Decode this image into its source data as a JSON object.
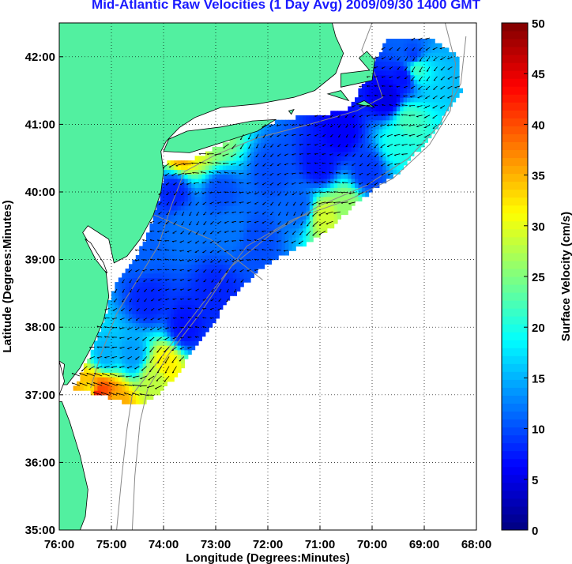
{
  "title": "Mid-Atlantic Raw Velocities (1 Day Avg) 2009/09/30 1400 GMT",
  "axes": {
    "xlabel": "Longitude (Degrees:Minutes)",
    "ylabel": "Latitude (Degrees:Minutes)",
    "xlim": [
      -76,
      -68
    ],
    "ylim": [
      35,
      42.5
    ],
    "xticks": [
      {
        "v": -76,
        "label": "76:00"
      },
      {
        "v": -75,
        "label": "75:00"
      },
      {
        "v": -74,
        "label": "74:00"
      },
      {
        "v": -73,
        "label": "73:00"
      },
      {
        "v": -72,
        "label": "72:00"
      },
      {
        "v": -71,
        "label": "71:00"
      },
      {
        "v": -70,
        "label": "70:00"
      },
      {
        "v": -69,
        "label": "69:00"
      },
      {
        "v": -68,
        "label": "68:00"
      }
    ],
    "yticks": [
      {
        "v": 35,
        "label": "35:00"
      },
      {
        "v": 36,
        "label": "36:00"
      },
      {
        "v": 37,
        "label": "37:00"
      },
      {
        "v": 38,
        "label": "38:00"
      },
      {
        "v": 39,
        "label": "39:00"
      },
      {
        "v": 40,
        "label": "40:00"
      },
      {
        "v": 41,
        "label": "41:00"
      },
      {
        "v": 42,
        "label": "42:00"
      }
    ],
    "grid": "dotted"
  },
  "colorbar": {
    "label": "Surface Velocity (cm/s)",
    "min": 0,
    "max": 50,
    "ticks": [
      {
        "v": 0,
        "label": "0"
      },
      {
        "v": 5,
        "label": "5"
      },
      {
        "v": 10,
        "label": "10"
      },
      {
        "v": 15,
        "label": "15"
      },
      {
        "v": 20,
        "label": "20"
      },
      {
        "v": 25,
        "label": "25"
      },
      {
        "v": 30,
        "label": "30"
      },
      {
        "v": 35,
        "label": "35"
      },
      {
        "v": 40,
        "label": "40"
      },
      {
        "v": 45,
        "label": "45"
      },
      {
        "v": 50,
        "label": "50"
      }
    ],
    "colormap": "jet"
  },
  "colors": {
    "land": "#52f0a0",
    "title": "#1a1aff",
    "bathymetry": "#888888",
    "arrow": "#000000"
  },
  "chart_data": {
    "type": "heatmap",
    "title": "Mid-Atlantic Raw Velocities (1 Day Avg) 2009/09/30 1400 GMT",
    "xlabel": "Longitude (Degrees:Minutes)",
    "ylabel": "Latitude (Degrees:Minutes)",
    "xlim": [
      -76,
      -68
    ],
    "ylim": [
      35,
      42.5
    ],
    "value_label": "Surface Velocity (cm/s)",
    "value_range": [
      0,
      50
    ],
    "coverage_polygon": [
      [
        -74.8,
        36.9
      ],
      [
        -74.5,
        36.85
      ],
      [
        -74.1,
        37.0
      ],
      [
        -73.75,
        37.3
      ],
      [
        -73.3,
        37.8
      ],
      [
        -72.75,
        38.4
      ],
      [
        -72.1,
        38.9
      ],
      [
        -71.5,
        39.15
      ],
      [
        -70.9,
        39.4
      ],
      [
        -70.3,
        39.85
      ],
      [
        -69.5,
        40.3
      ],
      [
        -68.9,
        40.8
      ],
      [
        -68.3,
        41.5
      ],
      [
        -68.35,
        42.0
      ],
      [
        -68.9,
        42.3
      ],
      [
        -69.7,
        42.25
      ],
      [
        -70.0,
        41.9
      ],
      [
        -70.2,
        41.55
      ],
      [
        -70.5,
        41.2
      ],
      [
        -71.5,
        41.1
      ],
      [
        -72.3,
        40.95
      ],
      [
        -73.0,
        40.65
      ],
      [
        -73.4,
        40.5
      ],
      [
        -73.95,
        40.45
      ],
      [
        -74.1,
        39.9
      ],
      [
        -74.3,
        39.4
      ],
      [
        -74.55,
        39.0
      ],
      [
        -74.95,
        38.6
      ],
      [
        -75.1,
        38.2
      ],
      [
        -75.35,
        37.7
      ],
      [
        -75.6,
        37.3
      ],
      [
        -75.7,
        37.1
      ]
    ],
    "speed_samples": [
      {
        "lon": -75.3,
        "lat": 36.95,
        "v": 48
      },
      {
        "lon": -75.15,
        "lat": 37.0,
        "v": 40
      },
      {
        "lon": -74.95,
        "lat": 36.9,
        "v": 35
      },
      {
        "lon": -75.4,
        "lat": 37.05,
        "v": 32
      },
      {
        "lon": -74.15,
        "lat": 37.25,
        "v": 28
      },
      {
        "lon": -73.95,
        "lat": 37.45,
        "v": 32
      },
      {
        "lon": -73.65,
        "lat": 40.6,
        "v": 36
      },
      {
        "lon": -73.3,
        "lat": 40.7,
        "v": 30
      },
      {
        "lon": -73.0,
        "lat": 40.75,
        "v": 25
      },
      {
        "lon": -70.9,
        "lat": 39.65,
        "v": 29
      },
      {
        "lon": -70.5,
        "lat": 39.8,
        "v": 26
      },
      {
        "lon": -69.15,
        "lat": 41.85,
        "v": 22
      },
      {
        "lon": -69.3,
        "lat": 41.05,
        "v": 22
      },
      {
        "lon": -69.5,
        "lat": 40.75,
        "v": 20
      },
      {
        "lon": -74.6,
        "lat": 37.6,
        "v": 14
      },
      {
        "lon": -75.1,
        "lat": 37.6,
        "v": 15
      },
      {
        "lon": -74.3,
        "lat": 38.4,
        "v": 8
      },
      {
        "lon": -73.6,
        "lat": 38.0,
        "v": 7
      },
      {
        "lon": -73.0,
        "lat": 38.5,
        "v": 8
      },
      {
        "lon": -74.4,
        "lat": 39.1,
        "v": 11
      },
      {
        "lon": -73.6,
        "lat": 39.5,
        "v": 12
      },
      {
        "lon": -72.7,
        "lat": 39.5,
        "v": 12
      },
      {
        "lon": -73.8,
        "lat": 40.0,
        "v": 8
      },
      {
        "lon": -72.9,
        "lat": 40.0,
        "v": 10
      },
      {
        "lon": -72.2,
        "lat": 39.3,
        "v": 10
      },
      {
        "lon": -71.9,
        "lat": 40.3,
        "v": 10
      },
      {
        "lon": -71.4,
        "lat": 39.8,
        "v": 11
      },
      {
        "lon": -71.0,
        "lat": 40.4,
        "v": 7
      },
      {
        "lon": -70.6,
        "lat": 40.9,
        "v": 6
      },
      {
        "lon": -70.1,
        "lat": 40.3,
        "v": 9
      },
      {
        "lon": -69.7,
        "lat": 41.4,
        "v": 5
      },
      {
        "lon": -69.2,
        "lat": 42.0,
        "v": 9
      },
      {
        "lon": -69.4,
        "lat": 41.7,
        "v": 7
      }
    ],
    "flow": "mostly southwestward along-shelf, stronger near the Chesapeake mouth and the southern New England shelf edge"
  }
}
